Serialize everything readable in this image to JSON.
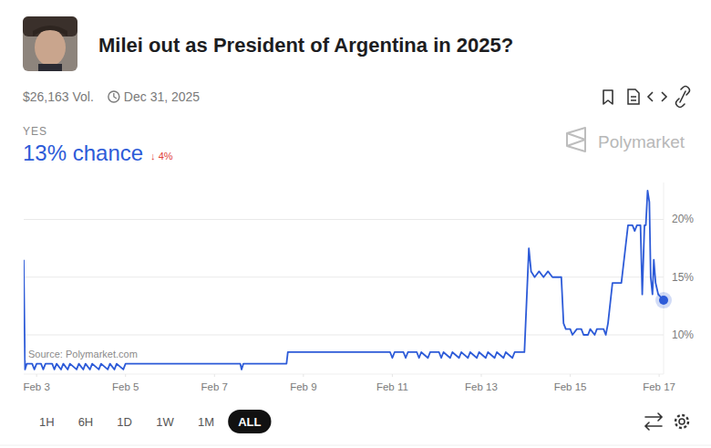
{
  "chart_data": {
    "type": "line",
    "title": "Milei out as President of Argentina in 2025?",
    "volume": "$26,163 Vol.",
    "end_date": "Dec 31, 2025",
    "outcome": "YES",
    "probability_label": "13% chance",
    "change_label": "↓ 4%",
    "brand": "Polymarket",
    "source": "Source: Polymarket.com",
    "time_ranges": [
      "1H",
      "6H",
      "1D",
      "1W",
      "1M",
      "ALL"
    ],
    "selected_range": "ALL",
    "color": "#2d5bd8",
    "marker": "last",
    "grid": true,
    "x": [
      2.71,
      2.74,
      2.78,
      2.9,
      2.95,
      3.0,
      3.1,
      3.15,
      3.2,
      3.35,
      3.4,
      3.45,
      3.55,
      3.6,
      3.7,
      3.75,
      3.9,
      3.95,
      4.05,
      4.1,
      4.2,
      4.25,
      4.4,
      4.45,
      4.6,
      4.65,
      4.75,
      4.8,
      4.95,
      5.0,
      7.58,
      7.61,
      7.65,
      8.62,
      8.65,
      10.95,
      11.0,
      11.05,
      11.25,
      11.3,
      11.35,
      11.55,
      11.6,
      11.65,
      11.8,
      11.85,
      12.05,
      12.1,
      12.15,
      12.3,
      12.35,
      12.5,
      12.55,
      12.7,
      12.75,
      12.9,
      12.95,
      13.1,
      13.15,
      13.3,
      13.35,
      13.5,
      13.55,
      13.7,
      13.75,
      13.97,
      14.07,
      14.12,
      14.2,
      14.3,
      14.4,
      14.5,
      14.6,
      14.8,
      14.85,
      14.9,
      15.0,
      15.05,
      15.15,
      15.25,
      15.3,
      15.4,
      15.45,
      15.55,
      15.6,
      15.75,
      15.8,
      15.85,
      15.95,
      16.15,
      16.3,
      16.4,
      16.45,
      16.5,
      16.58,
      16.62,
      16.67,
      16.7,
      16.74,
      16.78,
      16.81,
      16.85,
      16.88,
      16.92,
      16.98,
      17.1
    ],
    "values": [
      16.5,
      7.0,
      7.5,
      7.5,
      7.0,
      7.5,
      7.5,
      7.0,
      7.5,
      7.5,
      7.0,
      7.5,
      7.0,
      7.5,
      7.0,
      7.5,
      7.0,
      7.5,
      7.0,
      7.5,
      7.0,
      7.5,
      7.0,
      7.5,
      7.0,
      7.5,
      7.0,
      7.5,
      7.0,
      7.5,
      7.5,
      7.0,
      7.5,
      7.5,
      8.5,
      8.5,
      8.0,
      8.5,
      8.5,
      8.0,
      8.5,
      8.5,
      8.0,
      8.5,
      8.0,
      8.5,
      8.5,
      8.0,
      8.5,
      8.0,
      8.5,
      8.0,
      8.5,
      8.0,
      8.5,
      8.0,
      8.5,
      8.0,
      8.5,
      8.0,
      8.5,
      8.0,
      8.5,
      8.0,
      8.5,
      8.5,
      17.5,
      15.5,
      15.0,
      15.5,
      15.0,
      15.5,
      15.0,
      15.0,
      11.0,
      10.5,
      10.5,
      10.0,
      10.5,
      10.5,
      10.0,
      10.0,
      10.5,
      10.0,
      10.5,
      10.5,
      10.0,
      11.0,
      14.5,
      14.5,
      19.5,
      19.5,
      19.0,
      19.5,
      19.5,
      13.5,
      19.5,
      19.5,
      22.5,
      21.5,
      15.0,
      13.5,
      16.5,
      14.5,
      13.5,
      13.0
    ],
    "xlim": [
      2.71,
      17.1
    ],
    "xticks": [
      {
        "value": 3,
        "label": "Feb 3"
      },
      {
        "value": 5,
        "label": "Feb 5"
      },
      {
        "value": 7,
        "label": "Feb 7"
      },
      {
        "value": 9,
        "label": "Feb 9"
      },
      {
        "value": 11,
        "label": "Feb 11"
      },
      {
        "value": 13,
        "label": "Feb 13"
      },
      {
        "value": 15,
        "label": "Feb 15"
      },
      {
        "value": 17,
        "label": "Feb 17"
      }
    ],
    "ylim": [
      6.6,
      23.2
    ],
    "yticks": [
      {
        "value": 10,
        "label": "10%"
      },
      {
        "value": 15,
        "label": "15%"
      },
      {
        "value": 20,
        "label": "20%"
      }
    ]
  }
}
